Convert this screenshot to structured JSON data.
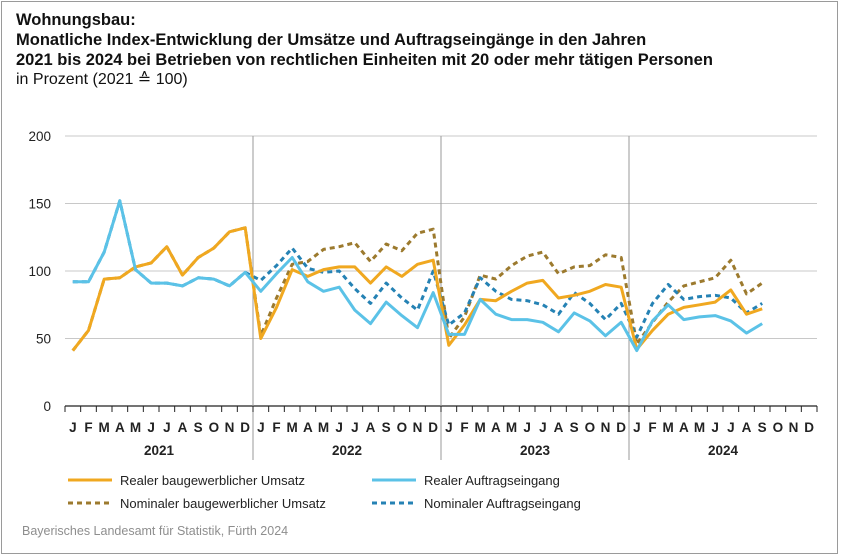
{
  "header": {
    "title_lines": [
      "Wohnungsbau:",
      "Monatliche Index-Entwicklung der Umsätze und Auftragseingänge in den Jahren",
      "2021 bis 2024 bei Betrieben von rechtlichen Einheiten mit 20 oder mehr tätigen Personen"
    ],
    "subtitle": "in Prozent (2021 ≙ 100)"
  },
  "source": "Bayerisches Landesamt für Statistik, Fürth 2024",
  "chart_data": {
    "type": "line",
    "ylim": [
      0,
      200
    ],
    "y_ticks": [
      0,
      50,
      100,
      150,
      200
    ],
    "grid": true,
    "legend_position": "bottom",
    "month_labels": [
      "J",
      "F",
      "M",
      "A",
      "M",
      "J",
      "J",
      "A",
      "S",
      "O",
      "N",
      "D"
    ],
    "years": [
      "2021",
      "2022",
      "2023",
      "2024"
    ],
    "series": [
      {
        "name": "Realer baugewerblicher Umsatz",
        "color": "#f0a820",
        "dash": "solid",
        "values": [
          41,
          56,
          94,
          95,
          103,
          106,
          118,
          97,
          110,
          117,
          129,
          132,
          50,
          73,
          101,
          96,
          101,
          103,
          103,
          91,
          103,
          96,
          105,
          108,
          45,
          60,
          79,
          78,
          85,
          91,
          93,
          80,
          82,
          85,
          90,
          88,
          42,
          56,
          68,
          73,
          75,
          77,
          86,
          68,
          72
        ]
      },
      {
        "name": "Realer Auftragseingang",
        "color": "#5bc2e7",
        "dash": "solid",
        "values": [
          92,
          92,
          114,
          152,
          101,
          91,
          91,
          89,
          95,
          94,
          89,
          99,
          85,
          98,
          110,
          92,
          85,
          88,
          71,
          61,
          77,
          67,
          58,
          84,
          53,
          53,
          79,
          68,
          64,
          64,
          62,
          55,
          69,
          63,
          52,
          62,
          41,
          63,
          75,
          64,
          66,
          67,
          63,
          54,
          61
        ]
      },
      {
        "name": "Nominaler baugewerblicher Umsatz",
        "color": "#9c7a2e",
        "dash": "dashed",
        "values": [
          41,
          56,
          94,
          95,
          103,
          106,
          118,
          97,
          110,
          117,
          129,
          132,
          52,
          80,
          105,
          107,
          116,
          118,
          121,
          107,
          120,
          115,
          128,
          131,
          50,
          66,
          97,
          94,
          104,
          111,
          114,
          98,
          103,
          104,
          112,
          110,
          46,
          62,
          77,
          89,
          92,
          95,
          108,
          83,
          91
        ]
      },
      {
        "name": "Nominaler Auftragseingang",
        "color": "#2582b4",
        "dash": "dashed",
        "values": [
          92,
          92,
          114,
          152,
          101,
          91,
          91,
          89,
          95,
          94,
          89,
          99,
          93,
          104,
          117,
          102,
          99,
          100,
          87,
          76,
          91,
          80,
          71,
          100,
          60,
          69,
          95,
          85,
          79,
          78,
          75,
          68,
          84,
          76,
          64,
          76,
          51,
          76,
          90,
          79,
          81,
          82,
          80,
          69,
          76
        ]
      }
    ]
  }
}
